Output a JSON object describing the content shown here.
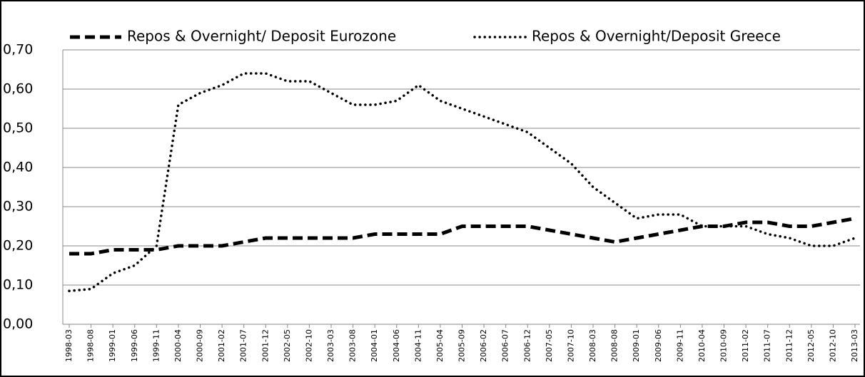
{
  "chart_data": {
    "type": "line",
    "categories": [
      "1998-03",
      "1998-08",
      "1999-01",
      "1999-06",
      "1999-11",
      "2000-04",
      "2000-09",
      "2001-02",
      "2001-07",
      "2001-12",
      "2002-05",
      "2002-10",
      "2003-03",
      "2003-08",
      "2004-01",
      "2004-06",
      "2004-11",
      "2005-04",
      "2005-09",
      "2006-02",
      "2006-07",
      "2006-12",
      "2007-05",
      "2007-10",
      "2008-03",
      "2008-08",
      "2009-01",
      "2009-06",
      "2009-11",
      "2010-04",
      "2010-09",
      "2011-02",
      "2011-07",
      "2011-12",
      "2012-05",
      "2012-10",
      "2013-03"
    ],
    "series": [
      {
        "name": "Repos & Overnight/ Deposit Eurozone",
        "color": "#000000",
        "style": "dashed",
        "values": [
          0.18,
          0.18,
          0.19,
          0.19,
          0.19,
          0.2,
          0.2,
          0.2,
          0.21,
          0.22,
          0.22,
          0.22,
          0.22,
          0.22,
          0.23,
          0.23,
          0.23,
          0.23,
          0.25,
          0.25,
          0.25,
          0.25,
          0.24,
          0.23,
          0.22,
          0.21,
          0.22,
          0.23,
          0.24,
          0.25,
          0.25,
          0.26,
          0.26,
          0.25,
          0.25,
          0.26,
          0.27
        ]
      },
      {
        "name": "Repos & Overnight/Deposit Greece",
        "color": "#000000",
        "style": "dotted",
        "values": [
          0.085,
          0.09,
          0.13,
          0.15,
          0.2,
          0.56,
          0.59,
          0.61,
          0.64,
          0.64,
          0.62,
          0.62,
          0.59,
          0.56,
          0.56,
          0.57,
          0.61,
          0.57,
          0.55,
          0.53,
          0.51,
          0.49,
          0.45,
          0.41,
          0.35,
          0.31,
          0.27,
          0.28,
          0.28,
          0.25,
          0.25,
          0.25,
          0.23,
          0.22,
          0.2,
          0.2,
          0.22
        ]
      }
    ],
    "ylim": [
      0,
      0.7
    ],
    "yticks": [
      {
        "value": 0,
        "label": "0,00"
      },
      {
        "value": 0.1,
        "label": "0,10"
      },
      {
        "value": 0.2,
        "label": "0,20"
      },
      {
        "value": 0.3,
        "label": "0,30"
      },
      {
        "value": 0.4,
        "label": "0,40"
      },
      {
        "value": 0.5,
        "label": "0,50"
      },
      {
        "value": 0.6,
        "label": "0,60"
      },
      {
        "value": 0.7,
        "label": "0,70"
      }
    ],
    "grid": true,
    "legend": "top"
  }
}
